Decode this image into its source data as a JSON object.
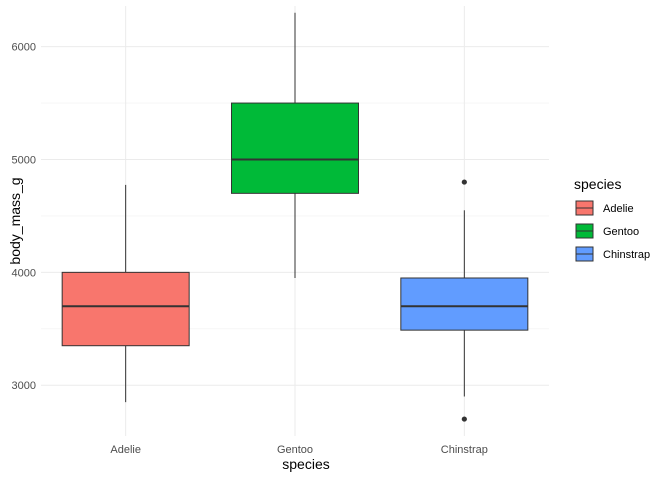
{
  "chart_data": {
    "type": "boxplot",
    "xlabel": "species",
    "ylabel": "body_mass_g",
    "categories": [
      "Adelie",
      "Gentoo",
      "Chinstrap"
    ],
    "ylim": [
      2550,
      6360
    ],
    "y_ticks": [
      3000,
      4000,
      5000,
      6000
    ],
    "grid": true,
    "legend": {
      "title": "species",
      "position": "right",
      "entries": [
        "Adelie",
        "Gentoo",
        "Chinstrap"
      ]
    },
    "series": [
      {
        "category": "Adelie",
        "color": "#F8766D",
        "whisker_low": 2850,
        "q1": 3350,
        "median": 3700,
        "q3": 4000,
        "whisker_high": 4775,
        "outliers": []
      },
      {
        "category": "Gentoo",
        "color": "#00BA38",
        "whisker_low": 3950,
        "q1": 4700,
        "median": 5000,
        "q3": 5500,
        "whisker_high": 6300,
        "outliers": []
      },
      {
        "category": "Chinstrap",
        "color": "#619CFF",
        "whisker_low": 2900,
        "q1": 3488,
        "median": 3700,
        "q3": 3950,
        "whisker_high": 4550,
        "outliers": [
          2700,
          4800
        ]
      }
    ]
  }
}
